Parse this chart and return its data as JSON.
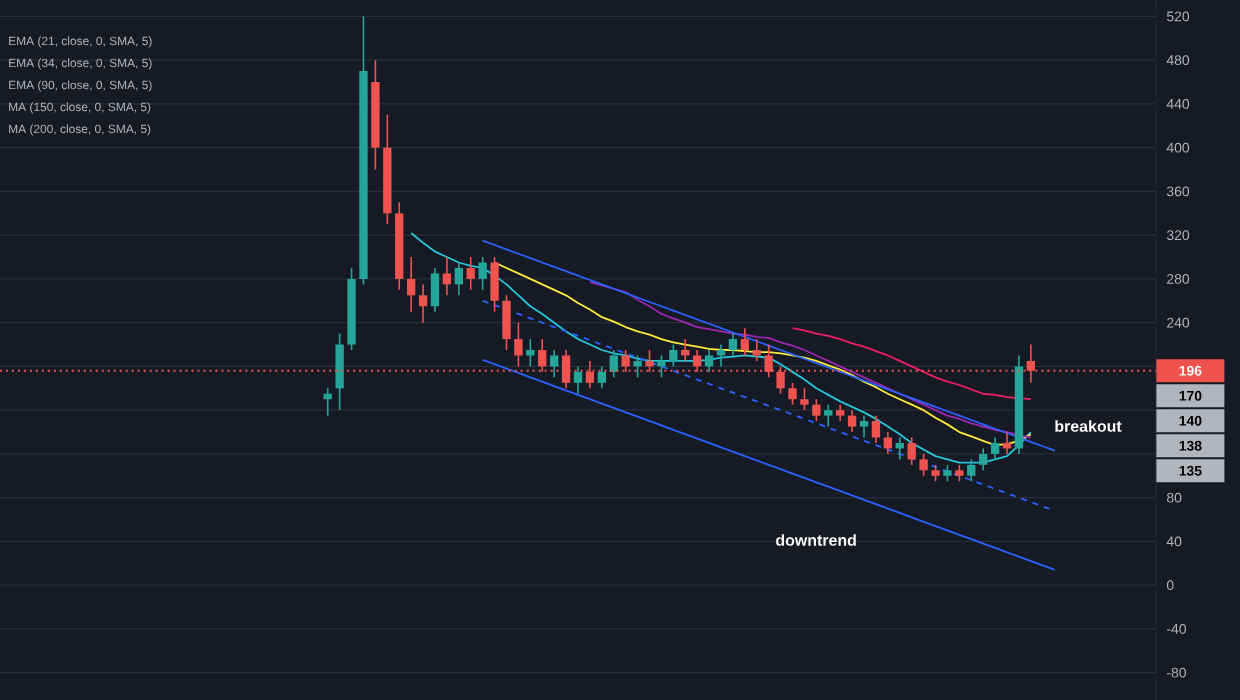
{
  "chart_data": {
    "type": "candlestick",
    "categories": [
      null,
      null,
      null,
      null,
      null,
      null,
      null,
      null,
      null,
      null,
      null,
      null,
      null,
      null,
      null,
      null,
      null,
      null,
      null,
      null,
      null,
      null,
      null,
      null,
      null,
      null,
      null,
      null,
      null,
      null,
      null,
      null,
      null,
      null,
      null,
      null,
      null,
      null,
      null,
      null,
      null,
      null,
      null,
      null,
      null,
      null,
      null,
      null,
      null,
      null,
      null,
      null,
      null,
      null,
      null,
      null,
      null,
      null,
      null,
      null,
      null,
      null,
      null,
      null,
      null,
      null,
      null,
      null,
      null,
      null,
      null,
      null,
      null,
      null,
      null,
      null,
      null,
      null,
      null,
      null,
      null,
      null,
      null,
      null,
      null,
      null,
      null,
      null,
      null,
      null,
      null,
      null,
      null,
      null,
      null,
      null,
      null
    ],
    "colors": [
      null,
      null,
      null,
      null,
      null,
      null,
      null,
      null,
      null,
      null,
      null,
      null,
      null,
      null,
      null,
      null,
      null,
      null,
      null,
      null,
      null,
      null,
      null,
      null,
      null,
      null,
      null,
      "#26a69a",
      "#26a69a",
      "#26a69a",
      "#26a69a",
      "#ef5350",
      "#ef5350",
      "#ef5350",
      "#ef5350",
      "#ef5350",
      "#26a69a",
      "#ef5350",
      "#26a69a",
      "#ef5350",
      "#26a69a",
      "#ef5350",
      "#ef5350",
      "#ef5350",
      "#26a69a",
      "#ef5350",
      "#26a69a",
      "#ef5350",
      "#26a69a",
      "#ef5350",
      "#26a69a",
      "#26a69a",
      "#ef5350",
      "#26a69a",
      "#ef5350",
      "#26a69a",
      "#26a69a",
      "#ef5350",
      "#ef5350",
      "#26a69a",
      "#26a69a",
      "#26a69a",
      "#ef5350",
      "#ef5350",
      "#ef5350",
      "#ef5350",
      "#ef5350",
      "#ef5350",
      "#ef5350",
      "#26a69a",
      "#ef5350",
      "#ef5350",
      "#26a69a",
      "#ef5350",
      "#ef5350",
      "#26a69a",
      "#ef5350",
      "#ef5350",
      "#ef5350",
      "#26a69a",
      "#ef5350",
      "#26a69a",
      "#26a69a",
      "#26a69a",
      "#ef5350",
      "#26a69a",
      "#ef5350",
      null,
      null,
      null,
      null,
      null,
      null,
      null,
      null,
      null,
      null
    ],
    "ohlc": [
      null,
      null,
      null,
      null,
      null,
      null,
      null,
      null,
      null,
      null,
      null,
      null,
      null,
      null,
      null,
      null,
      null,
      null,
      null,
      null,
      null,
      null,
      null,
      null,
      null,
      null,
      null,
      [
        170,
        180,
        155,
        175
      ],
      [
        180,
        230,
        160,
        220
      ],
      [
        220,
        290,
        215,
        280
      ],
      [
        280,
        520,
        275,
        470
      ],
      [
        460,
        480,
        380,
        400
      ],
      [
        400,
        430,
        330,
        340
      ],
      [
        340,
        350,
        270,
        280
      ],
      [
        280,
        300,
        250,
        265
      ],
      [
        265,
        275,
        240,
        255
      ],
      [
        255,
        290,
        250,
        285
      ],
      [
        285,
        300,
        265,
        275
      ],
      [
        275,
        295,
        265,
        290
      ],
      [
        290,
        300,
        270,
        280
      ],
      [
        280,
        300,
        270,
        295
      ],
      [
        295,
        300,
        250,
        260
      ],
      [
        260,
        265,
        215,
        225
      ],
      [
        225,
        240,
        200,
        210
      ],
      [
        210,
        225,
        200,
        215
      ],
      [
        215,
        225,
        195,
        200
      ],
      [
        200,
        215,
        190,
        210
      ],
      [
        210,
        215,
        180,
        185
      ],
      [
        185,
        200,
        175,
        195
      ],
      [
        195,
        205,
        180,
        185
      ],
      [
        185,
        200,
        180,
        195
      ],
      [
        195,
        215,
        190,
        210
      ],
      [
        210,
        215,
        195,
        200
      ],
      [
        200,
        210,
        190,
        205
      ],
      [
        205,
        215,
        195,
        200
      ],
      [
        200,
        210,
        190,
        205
      ],
      [
        205,
        220,
        200,
        215
      ],
      [
        215,
        225,
        205,
        210
      ],
      [
        210,
        215,
        195,
        200
      ],
      [
        200,
        215,
        195,
        210
      ],
      [
        210,
        220,
        200,
        215
      ],
      [
        215,
        230,
        210,
        225
      ],
      [
        225,
        235,
        210,
        215
      ],
      [
        215,
        225,
        205,
        210
      ],
      [
        210,
        220,
        190,
        195
      ],
      [
        195,
        200,
        175,
        180
      ],
      [
        180,
        185,
        165,
        170
      ],
      [
        170,
        180,
        160,
        165
      ],
      [
        165,
        170,
        150,
        155
      ],
      [
        155,
        165,
        145,
        160
      ],
      [
        160,
        165,
        150,
        155
      ],
      [
        155,
        160,
        140,
        145
      ],
      [
        145,
        155,
        135,
        150
      ],
      [
        150,
        155,
        130,
        135
      ],
      [
        135,
        140,
        120,
        125
      ],
      [
        125,
        135,
        115,
        130
      ],
      [
        130,
        135,
        110,
        115
      ],
      [
        115,
        120,
        100,
        105
      ],
      [
        105,
        110,
        95,
        100
      ],
      [
        100,
        110,
        95,
        105
      ],
      [
        105,
        110,
        95,
        100
      ],
      [
        100,
        115,
        95,
        110
      ],
      [
        110,
        125,
        105,
        120
      ],
      [
        120,
        135,
        115,
        130
      ],
      [
        130,
        140,
        120,
        125
      ],
      [
        125,
        210,
        120,
        200
      ],
      [
        205,
        220,
        185,
        196
      ],
      null,
      null,
      null,
      null,
      null,
      null,
      null,
      null,
      null,
      null
    ],
    "series": [
      {
        "type": "line",
        "color": "#26c6da",
        "values": [
          null,
          null,
          null,
          null,
          null,
          null,
          null,
          null,
          null,
          null,
          null,
          null,
          null,
          null,
          null,
          null,
          null,
          null,
          null,
          null,
          null,
          null,
          null,
          null,
          null,
          null,
          null,
          null,
          null,
          null,
          null,
          null,
          null,
          null,
          322,
          313,
          305,
          300,
          295,
          292,
          290,
          283,
          275,
          265,
          255,
          248,
          240,
          232,
          225,
          220,
          215,
          212,
          210,
          207,
          205,
          205,
          205,
          205,
          205,
          206,
          208,
          209,
          210,
          209,
          208,
          202,
          195,
          188,
          180,
          174,
          168,
          163,
          158,
          152,
          145,
          138,
          130,
          124,
          118,
          115,
          112,
          112,
          112,
          115,
          118,
          128,
          140,
          null,
          null,
          null,
          null,
          null,
          null,
          null,
          null,
          null,
          null
        ]
      },
      {
        "type": "line",
        "color": "#ffeb3b",
        "values": [
          null,
          null,
          null,
          null,
          null,
          null,
          null,
          null,
          null,
          null,
          null,
          null,
          null,
          null,
          null,
          null,
          null,
          null,
          null,
          null,
          null,
          null,
          null,
          null,
          null,
          null,
          null,
          null,
          null,
          null,
          null,
          null,
          null,
          null,
          null,
          null,
          null,
          null,
          null,
          null,
          null,
          295,
          290,
          285,
          280,
          275,
          270,
          265,
          258,
          252,
          245,
          241,
          236,
          232,
          229,
          225,
          222,
          220,
          218,
          216,
          215,
          215,
          214,
          213,
          213,
          212,
          210,
          208,
          205,
          201,
          197,
          192,
          186,
          181,
          175,
          170,
          165,
          160,
          153,
          147,
          140,
          136,
          132,
          128,
          129,
          132,
          138,
          null,
          null,
          null,
          null,
          null,
          null,
          null,
          null,
          null,
          null
        ]
      },
      {
        "type": "line",
        "color": "#9c27b0",
        "values": [
          null,
          null,
          null,
          null,
          null,
          null,
          null,
          null,
          null,
          null,
          null,
          null,
          null,
          null,
          null,
          null,
          null,
          null,
          null,
          null,
          null,
          null,
          null,
          null,
          null,
          null,
          null,
          null,
          null,
          null,
          null,
          null,
          null,
          null,
          null,
          null,
          null,
          null,
          null,
          null,
          null,
          null,
          null,
          null,
          null,
          null,
          null,
          null,
          null,
          277,
          274,
          271,
          268,
          261,
          255,
          248,
          244,
          240,
          236,
          234,
          232,
          230,
          229,
          227,
          226,
          222,
          219,
          215,
          210,
          205,
          200,
          195,
          190,
          185,
          180,
          175,
          170,
          165,
          160,
          155,
          152,
          148,
          145,
          142,
          140,
          137,
          135,
          null,
          null,
          null,
          null,
          null,
          null,
          null,
          null,
          null,
          null
        ]
      },
      {
        "type": "line",
        "color": "#e91e63",
        "values": [
          null,
          null,
          null,
          null,
          null,
          null,
          null,
          null,
          null,
          null,
          null,
          null,
          null,
          null,
          null,
          null,
          null,
          null,
          null,
          null,
          null,
          null,
          null,
          null,
          null,
          null,
          null,
          null,
          null,
          null,
          null,
          null,
          null,
          null,
          null,
          null,
          null,
          null,
          null,
          null,
          null,
          null,
          null,
          null,
          null,
          null,
          null,
          null,
          null,
          null,
          null,
          null,
          null,
          null,
          null,
          null,
          null,
          null,
          null,
          null,
          null,
          null,
          null,
          null,
          null,
          null,
          235,
          233,
          230,
          228,
          225,
          221,
          218,
          214,
          210,
          205,
          200,
          195,
          190,
          186,
          183,
          179,
          175,
          174,
          172,
          171,
          170,
          null,
          null,
          null,
          null,
          null,
          null,
          null,
          null,
          null,
          null
        ]
      },
      {
        "type": "line",
        "color": "#2962ff",
        "values": [
          null,
          null,
          null,
          null,
          null,
          null,
          null,
          null,
          null,
          null,
          null,
          null,
          null,
          null,
          null,
          null,
          null,
          null,
          null,
          null,
          null,
          null,
          null,
          null,
          null,
          null,
          null,
          null,
          null,
          null,
          null,
          null,
          null,
          null,
          null,
          null,
          null,
          null,
          null,
          null,
          315,
          311,
          307,
          303,
          299,
          295,
          291,
          287,
          283,
          279,
          275,
          271,
          267,
          263,
          259,
          255,
          251,
          247,
          243,
          239,
          235,
          231,
          227,
          223,
          219,
          215,
          211,
          207,
          203,
          199,
          195,
          191,
          187,
          183,
          179,
          175,
          171,
          167,
          163,
          159,
          155,
          151,
          147,
          143,
          139,
          135,
          131,
          127,
          123,
          null,
          null,
          null,
          null,
          null,
          null,
          null,
          null
        ]
      },
      {
        "type": "line",
        "color": "#2962ff",
        "line_style": "dashed",
        "values": [
          null,
          null,
          null,
          null,
          null,
          null,
          null,
          null,
          null,
          null,
          null,
          null,
          null,
          null,
          null,
          null,
          null,
          null,
          null,
          null,
          null,
          null,
          null,
          null,
          null,
          null,
          null,
          null,
          null,
          null,
          null,
          null,
          null,
          null,
          null,
          null,
          null,
          null,
          null,
          null,
          260,
          256,
          252,
          248,
          244,
          240,
          236,
          232,
          228,
          224,
          220,
          216,
          212,
          208,
          204,
          200,
          196,
          192,
          188,
          184,
          180,
          176,
          172,
          168,
          164,
          160,
          156,
          152,
          148,
          144,
          140,
          136,
          132,
          128,
          124,
          120,
          116,
          112,
          108,
          104,
          100,
          96,
          92,
          88,
          84,
          80,
          76,
          72,
          68,
          null,
          null,
          null,
          null,
          null,
          null,
          null,
          null
        ]
      },
      {
        "type": "line",
        "color": "#2962ff",
        "values": [
          null,
          null,
          null,
          null,
          null,
          null,
          null,
          null,
          null,
          null,
          null,
          null,
          null,
          null,
          null,
          null,
          null,
          null,
          null,
          null,
          null,
          null,
          null,
          null,
          null,
          null,
          null,
          null,
          null,
          null,
          null,
          null,
          null,
          null,
          null,
          null,
          null,
          null,
          null,
          null,
          206,
          202,
          198,
          194,
          190,
          186,
          182,
          178,
          174,
          170,
          166,
          162,
          158,
          154,
          150,
          146,
          142,
          138,
          134,
          130,
          126,
          122,
          118,
          114,
          110,
          106,
          102,
          98,
          94,
          90,
          86,
          82,
          78,
          74,
          70,
          66,
          62,
          58,
          54,
          50,
          46,
          42,
          38,
          34,
          30,
          26,
          22,
          18,
          14,
          null,
          null,
          null,
          null,
          null,
          null,
          null,
          null
        ]
      }
    ],
    "ylim": [
      -105,
      535
    ],
    "yticks": [
      -80,
      -40,
      0,
      40,
      80,
      {
        "value": 120,
        "label": null
      },
      {
        "value": 160,
        "label": null
      },
      {
        "value": 200,
        "label": null
      },
      240,
      280,
      320,
      360,
      400,
      440,
      480,
      520
    ],
    "grid": "y",
    "ref_lines": [
      {
        "axis": "y",
        "value": 196,
        "label": "196",
        "color": "#ef5350",
        "line_style": "dotted"
      }
    ],
    "annotations": [
      "EMA (21, close, 0, SMA, 5)",
      "EMA (34, close, 0, SMA, 5)",
      "EMA (90, close, 0, SMA, 5)",
      "MA (150, close, 0, SMA, 5)",
      "MA (200, close, 0, SMA, 5)",
      "breakout",
      "downtrend",
      "170",
      "140",
      "138",
      "135"
    ]
  }
}
